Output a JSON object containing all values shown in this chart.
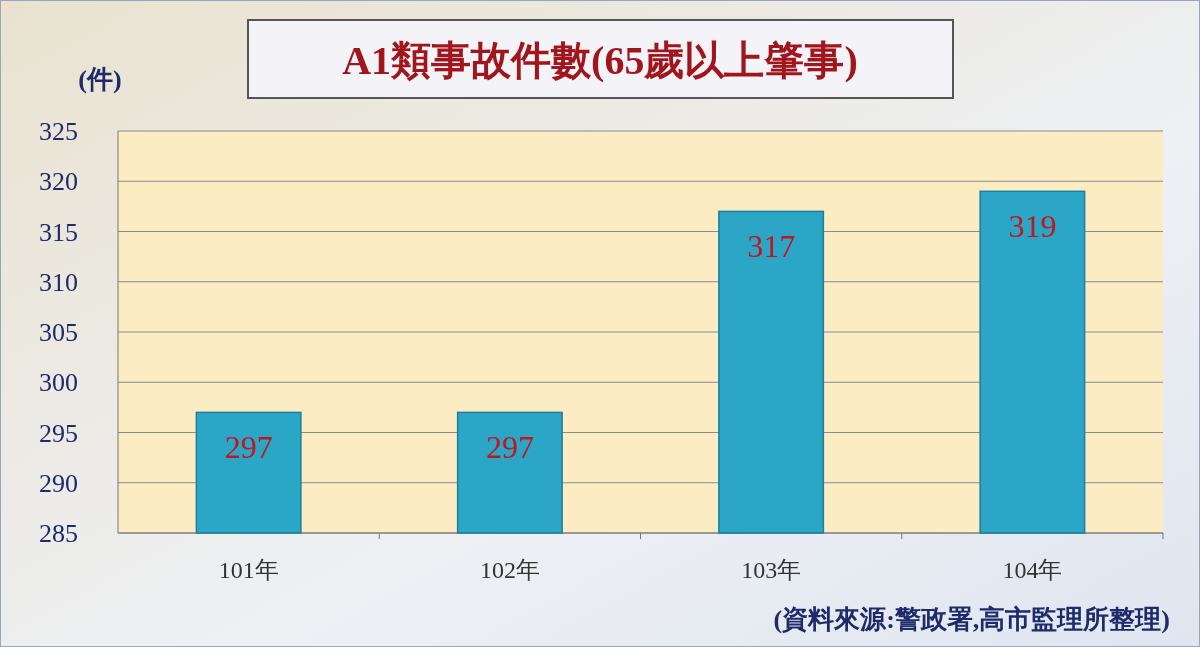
{
  "chart_data": {
    "type": "bar",
    "title": "A1類事故件數(65歲以上肇事)",
    "ylabel": "(件)",
    "categories": [
      "101年",
      "102年",
      "103年",
      "104年"
    ],
    "values": [
      297,
      297,
      317,
      319
    ],
    "color": "#2ba6c6",
    "ylim": [
      285,
      325
    ],
    "yticks": [
      285,
      290,
      295,
      300,
      305,
      310,
      315,
      320,
      325
    ],
    "grid": "y",
    "data_labels": true,
    "annotations": [
      "(資料來源:警政署,高市監理所整理)"
    ]
  }
}
